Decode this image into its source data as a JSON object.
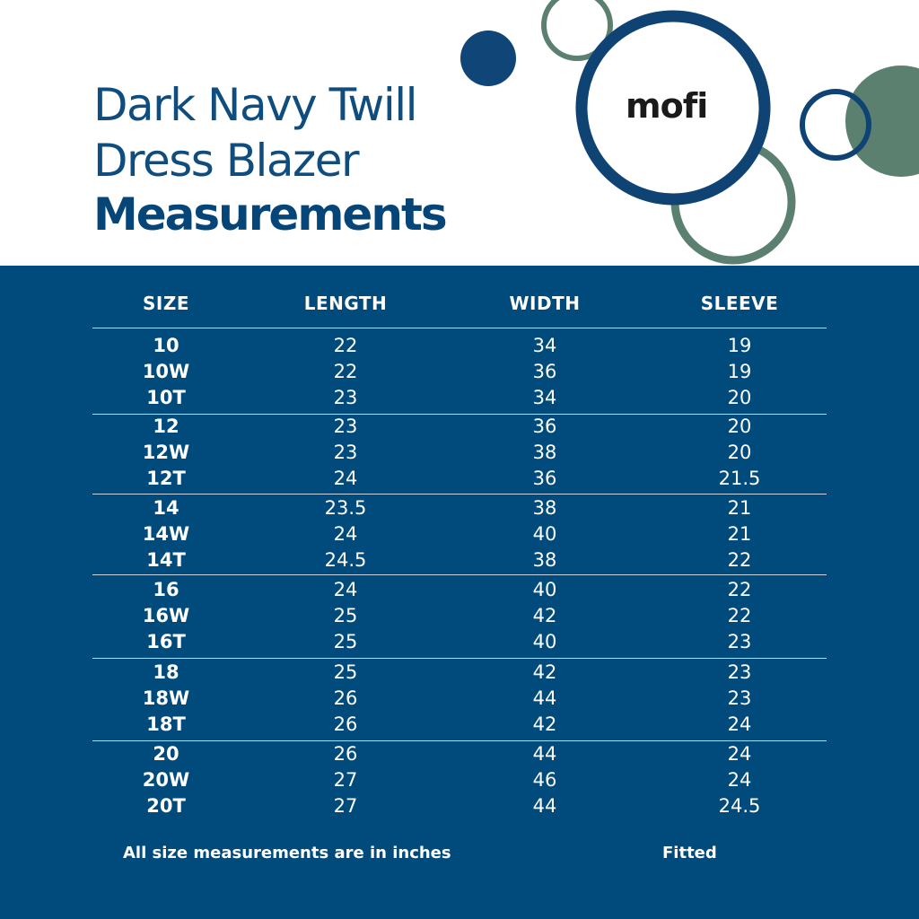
{
  "title": {
    "line1": "Dark Navy Twill",
    "line2": "Dress Blazer",
    "line3": "Measurements"
  },
  "brand": {
    "logo_text": "mofi"
  },
  "colors": {
    "navy": "#004b7c",
    "title_blue": "#0e4d7e",
    "sage_green": "#5c806f",
    "deep_navy_ring": "#0f4374",
    "white": "#ffffff"
  },
  "table": {
    "headers": [
      "SIZE",
      "LENGTH",
      "WIDTH",
      "SLEEVE"
    ],
    "groups": [
      [
        [
          "10",
          "22",
          "34",
          "19"
        ],
        [
          "10W",
          "22",
          "36",
          "19"
        ],
        [
          "10T",
          "23",
          "34",
          "20"
        ]
      ],
      [
        [
          "12",
          "23",
          "36",
          "20"
        ],
        [
          "12W",
          "23",
          "38",
          "20"
        ],
        [
          "12T",
          "24",
          "36",
          "21.5"
        ]
      ],
      [
        [
          "14",
          "23.5",
          "38",
          "21"
        ],
        [
          "14W",
          "24",
          "40",
          "21"
        ],
        [
          "14T",
          "24.5",
          "38",
          "22"
        ]
      ],
      [
        [
          "16",
          "24",
          "40",
          "22"
        ],
        [
          "16W",
          "25",
          "42",
          "22"
        ],
        [
          "16T",
          "25",
          "40",
          "23"
        ]
      ],
      [
        [
          "18",
          "25",
          "42",
          "23"
        ],
        [
          "18W",
          "26",
          "44",
          "23"
        ],
        [
          "18T",
          "26",
          "42",
          "24"
        ]
      ],
      [
        [
          "20",
          "26",
          "44",
          "24"
        ],
        [
          "20W",
          "27",
          "46",
          "24"
        ],
        [
          "20T",
          "27",
          "44",
          "24.5"
        ]
      ]
    ]
  },
  "footer": {
    "note": "All size measurements are in inches",
    "fit": "Fitted"
  }
}
